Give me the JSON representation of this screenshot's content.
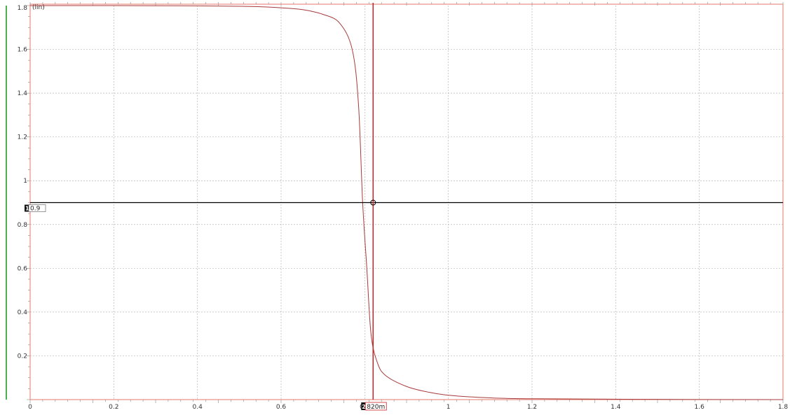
{
  "chart_data": {
    "type": "line",
    "y_unit_label": "(lin)",
    "xlim": [
      0,
      1.8
    ],
    "ylim": [
      0,
      1.8
    ],
    "grid": true,
    "x_ticks": [
      "0",
      "0.2",
      "0.4",
      "0.6",
      "0.8",
      "1",
      "1.2",
      "1.4",
      "1.6",
      "1.8"
    ],
    "y_ticks": [
      "0.2",
      "0.4",
      "0.6",
      "0.8",
      "1",
      "1.2",
      "1.4",
      "1.6",
      "1.8"
    ],
    "series": [
      {
        "color": "#a83a3a",
        "x": [
          0,
          0.2,
          0.4,
          0.5,
          0.55,
          0.6,
          0.65,
          0.7,
          0.74,
          0.77,
          0.785,
          0.795,
          0.805,
          0.815,
          0.83,
          0.85,
          0.9,
          0.95,
          1.0,
          1.1,
          1.2,
          1.5,
          1.8
        ],
        "y": [
          1.8,
          1.8,
          1.799,
          1.797,
          1.795,
          1.79,
          1.782,
          1.76,
          1.72,
          1.6,
          1.35,
          0.9,
          0.6,
          0.3,
          0.17,
          0.11,
          0.06,
          0.035,
          0.02,
          0.008,
          0.004,
          0.001,
          0.0
        ]
      }
    ],
    "cursors": [
      {
        "axis": "y",
        "id": "1",
        "value": 0.9,
        "label": "0.9",
        "color": "#000000"
      },
      {
        "axis": "x",
        "id": "2",
        "value": 0.82,
        "label": "820m",
        "color": "#cc2222"
      }
    ]
  }
}
